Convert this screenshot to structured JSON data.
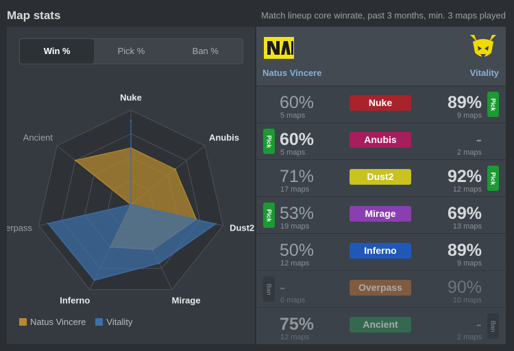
{
  "header": {
    "title": "Map stats",
    "subtitle": "Match lineup core winrate, past 3 months, min. 3 maps played"
  },
  "tabs": [
    {
      "label": "Win %",
      "active": true
    },
    {
      "label": "Pick %",
      "active": false
    },
    {
      "label": "Ban %",
      "active": false
    }
  ],
  "teams": {
    "left": {
      "name": "Natus Vincere",
      "logo": "navi-logo"
    },
    "right": {
      "name": "Vitality",
      "logo": "vitality-logo"
    }
  },
  "maps": [
    {
      "name": "Nuke",
      "color": "#a8232b",
      "left": {
        "pct": "60%",
        "maps": "5 maps",
        "highlight": false,
        "badge": ""
      },
      "right": {
        "pct": "89%",
        "maps": "9 maps",
        "highlight": true,
        "badge": "Pick"
      },
      "faded": false
    },
    {
      "name": "Anubis",
      "color": "#a81d5d",
      "left": {
        "pct": "60%",
        "maps": "5 maps",
        "highlight": true,
        "badge": "Pick"
      },
      "right": {
        "pct": "-",
        "maps": "2 maps",
        "highlight": false,
        "badge": ""
      },
      "faded": false
    },
    {
      "name": "Dust2",
      "color": "#c9c21f",
      "left": {
        "pct": "71%",
        "maps": "17 maps",
        "highlight": false,
        "badge": ""
      },
      "right": {
        "pct": "92%",
        "maps": "12 maps",
        "highlight": true,
        "badge": "Pick"
      },
      "faded": false
    },
    {
      "name": "Mirage",
      "color": "#8a3fb0",
      "left": {
        "pct": "53%",
        "maps": "19 maps",
        "highlight": false,
        "badge": "Pick"
      },
      "right": {
        "pct": "69%",
        "maps": "13 maps",
        "highlight": true,
        "badge": ""
      },
      "faded": false
    },
    {
      "name": "Inferno",
      "color": "#1f58b8",
      "left": {
        "pct": "50%",
        "maps": "12 maps",
        "highlight": false,
        "badge": ""
      },
      "right": {
        "pct": "89%",
        "maps": "9 maps",
        "highlight": true,
        "badge": ""
      },
      "faded": false
    },
    {
      "name": "Overpass",
      "color": "#b8703a",
      "left": {
        "pct": "-",
        "maps": "0 maps",
        "highlight": false,
        "badge": "Ban"
      },
      "right": {
        "pct": "90%",
        "maps": "10 maps",
        "highlight": false,
        "badge": ""
      },
      "faded": true
    },
    {
      "name": "Ancient",
      "color": "#2f8a55",
      "left": {
        "pct": "75%",
        "maps": "12 maps",
        "highlight": true,
        "badge": ""
      },
      "right": {
        "pct": "-",
        "maps": "2 maps",
        "highlight": false,
        "badge": "Ban"
      },
      "faded": true
    }
  ],
  "chart_data": {
    "type": "radar",
    "categories": [
      "Nuke",
      "Anubis",
      "Dust2",
      "Mirage",
      "Inferno",
      "Overpass",
      "Ancient"
    ],
    "rmax": 100,
    "series": [
      {
        "name": "Natus Vincere",
        "color": "#b88a2e",
        "values": [
          60,
          60,
          71,
          53,
          50,
          0,
          75
        ]
      },
      {
        "name": "Vitality",
        "color": "#3d6fa8",
        "values": [
          89,
          0,
          92,
          69,
          89,
          90,
          0
        ]
      }
    ],
    "legend": "bottom-left"
  }
}
